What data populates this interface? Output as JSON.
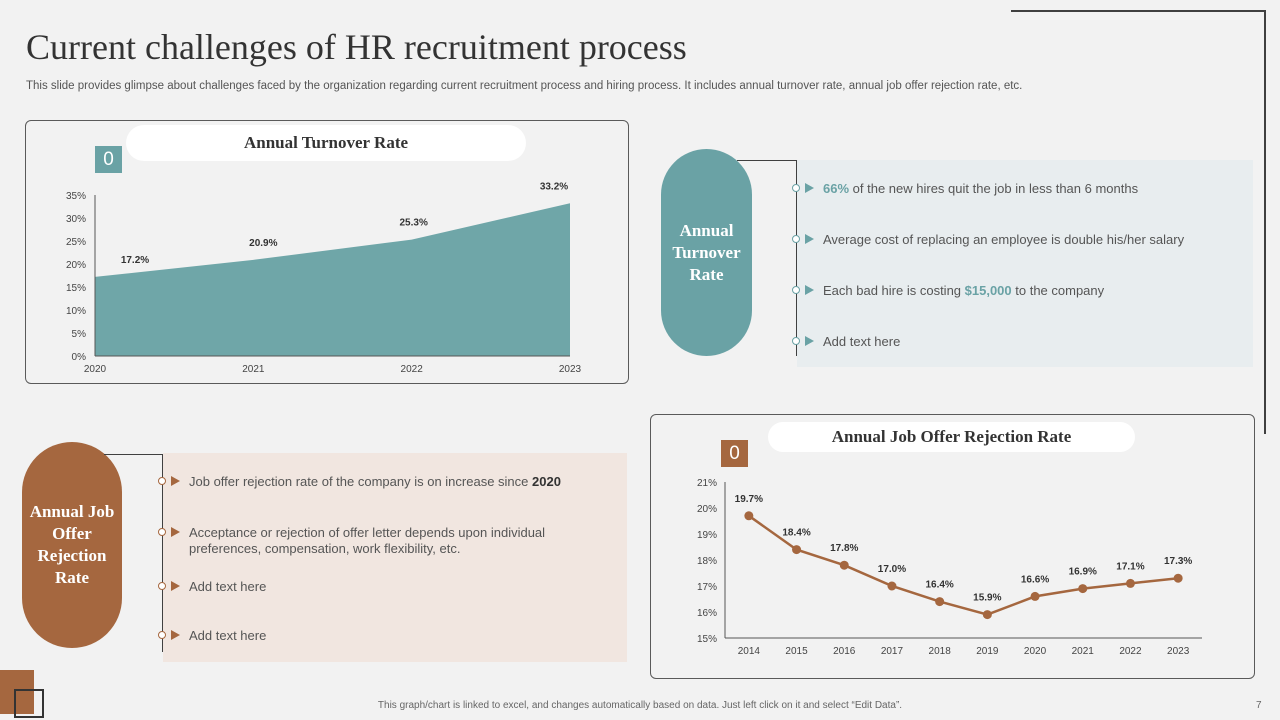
{
  "slide": {
    "title": "Current challenges of HR recruitment process",
    "subtitle": "This slide provides glimpse about challenges faced by the organization regarding current recruitment process and hiring process. It includes annual turnover rate, annual job offer rejection rate, etc.",
    "footer": "This graph/chart is linked to excel, and changes automatically based on data. Just left click on it and select “Edit Data”.",
    "page_number": "7"
  },
  "colors": {
    "teal": "#6aa2a5",
    "brown": "#a5673f",
    "teal_bg": "#e8edef",
    "brown_bg": "#f1e6e0"
  },
  "turnover_panel": {
    "title": "Annual Turnover Rate",
    "badge": "0",
    "oval_label": "Annual Turnover Rate",
    "bullets": [
      {
        "highlight": "66%",
        "text": " of the new hires quit the job in less than 6 months"
      },
      {
        "text": "Average  cost of replacing an employee is double his/her salary"
      },
      {
        "text": "Each bad hire is costing ",
        "highlight": "$15,000",
        "after": " to the company"
      },
      {
        "text": "Add text here"
      }
    ]
  },
  "rejection_panel": {
    "title": "Annual Job Offer Rejection Rate",
    "badge": "0",
    "oval_label": "Annual Job Offer Rejection Rate",
    "bullets": [
      {
        "text": "Job offer rejection rate of the company is on increase since ",
        "bold": "2020"
      },
      {
        "text": "Acceptance or rejection of offer letter depends upon individual preferences, compensation, work flexibility, etc."
      },
      {
        "text": "Add text here"
      },
      {
        "text": "Add text here"
      }
    ]
  },
  "chart_data": [
    {
      "type": "area",
      "title": "Annual Turnover Rate",
      "categories": [
        "2020",
        "2021",
        "2022",
        "2023"
      ],
      "values": [
        17.2,
        20.9,
        25.3,
        33.2
      ],
      "labels": [
        "17.2%",
        "20.9%",
        "25.3%",
        "33.2%"
      ],
      "ylim": [
        0,
        35
      ],
      "yticks": [
        "0%",
        "5%",
        "10%",
        "15%",
        "20%",
        "25%",
        "30%",
        "35%"
      ],
      "color": "#6fa6a8"
    },
    {
      "type": "line",
      "title": "Annual Job Offer Rejection Rate",
      "categories": [
        "2014",
        "2015",
        "2016",
        "2017",
        "2018",
        "2019",
        "2020",
        "2021",
        "2022",
        "2023"
      ],
      "values": [
        19.7,
        18.4,
        17.8,
        17.0,
        16.4,
        15.9,
        16.6,
        16.9,
        17.1,
        17.3
      ],
      "labels": [
        "19.7%",
        "18.4%",
        "17.8%",
        "17.0%",
        "16.4%",
        "15.9%",
        "16.6%",
        "16.9%",
        "17.1%",
        "17.3%"
      ],
      "ylim": [
        15,
        21
      ],
      "yticks": [
        "15%",
        "16%",
        "17%",
        "18%",
        "19%",
        "20%",
        "21%"
      ],
      "color": "#a5673f"
    }
  ]
}
